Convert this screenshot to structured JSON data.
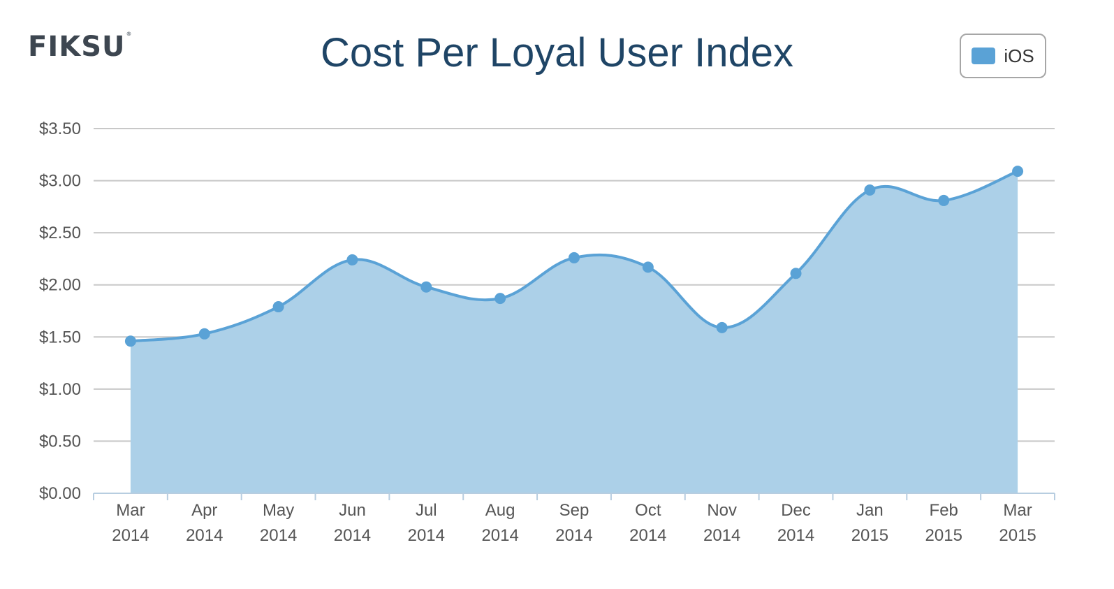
{
  "logo": {
    "text": "FIKSU",
    "mark": "®"
  },
  "chart_data": {
    "type": "area",
    "title": "Cost Per Loyal User Index",
    "xlabel": "",
    "ylabel": "",
    "categories": [
      [
        "Mar",
        "2014"
      ],
      [
        "Apr",
        "2014"
      ],
      [
        "May",
        "2014"
      ],
      [
        "Jun",
        "2014"
      ],
      [
        "Jul",
        "2014"
      ],
      [
        "Aug",
        "2014"
      ],
      [
        "Sep",
        "2014"
      ],
      [
        "Oct",
        "2014"
      ],
      [
        "Nov",
        "2014"
      ],
      [
        "Dec",
        "2014"
      ],
      [
        "Jan",
        "2015"
      ],
      [
        "Feb",
        "2015"
      ],
      [
        "Mar",
        "2015"
      ]
    ],
    "series": [
      {
        "name": "iOS",
        "color": "#5aa2d6",
        "fill": "#acd0e8",
        "values": [
          1.46,
          1.53,
          1.79,
          2.24,
          1.98,
          1.87,
          2.26,
          2.17,
          1.59,
          2.11,
          2.91,
          2.81,
          3.09
        ]
      }
    ],
    "yticks": [
      "$0.00",
      "$0.50",
      "$1.00",
      "$1.50",
      "$2.00",
      "$2.50",
      "$3.00",
      "$3.50"
    ],
    "ylim": [
      0,
      3.5
    ],
    "grid": true,
    "legend_position": "top-right"
  }
}
